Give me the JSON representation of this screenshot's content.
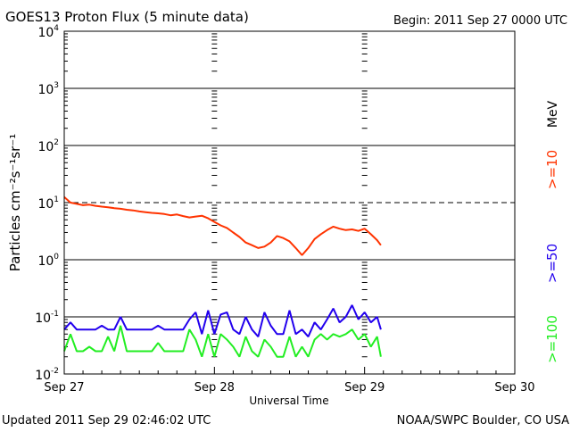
{
  "chart_data": {
    "type": "line",
    "title": "GOES13 Proton Flux (5 minute data)",
    "begin_label": "Begin: 2011 Sep 27 0000 UTC",
    "xlabel": "Universal Time",
    "ylabel": "Particles cm⁻²s⁻¹sr⁻¹",
    "energy_unit": "MeV",
    "yscale": "log",
    "ylim": [
      0.01,
      10000
    ],
    "y_ticks": [
      {
        "value": 10000,
        "base": "10",
        "exp": "4"
      },
      {
        "value": 1000,
        "base": "10",
        "exp": "3"
      },
      {
        "value": 100,
        "base": "10",
        "exp": "2"
      },
      {
        "value": 10,
        "base": "10",
        "exp": "1"
      },
      {
        "value": 1,
        "base": "10",
        "exp": "0"
      },
      {
        "value": 0.1,
        "base": "10",
        "exp": "-1"
      },
      {
        "value": 0.01,
        "base": "10",
        "exp": "-2"
      }
    ],
    "threshold_line": 10,
    "xlim_hours": [
      0,
      72
    ],
    "x_ticks": [
      {
        "hour": 0,
        "label": "Sep 27"
      },
      {
        "hour": 24,
        "label": "Sep 28"
      },
      {
        "hour": 48,
        "label": "Sep 29"
      },
      {
        "hour": 72,
        "label": "Sep 30"
      }
    ],
    "x_hours": [
      0,
      1,
      2,
      3,
      4,
      5,
      6,
      7,
      8,
      9,
      10,
      11,
      12,
      13,
      14,
      15,
      16,
      17,
      18,
      19,
      20,
      21,
      22,
      23,
      24,
      25,
      26,
      27,
      28,
      29,
      30,
      31,
      32,
      33,
      34,
      35,
      36,
      37,
      38,
      39,
      40,
      41,
      42,
      43,
      44,
      45,
      46,
      47,
      48,
      49,
      50,
      50.6
    ],
    "series": [
      {
        "name": ">=10",
        "color": "#ff3300",
        "values": [
          12.5,
          10,
          9.5,
          9,
          9.2,
          8.8,
          8.5,
          8.3,
          8,
          7.8,
          7.5,
          7.3,
          7,
          6.8,
          6.6,
          6.5,
          6.3,
          6,
          6.2,
          5.8,
          5.5,
          5.7,
          5.9,
          5.3,
          4.6,
          4,
          3.6,
          3,
          2.5,
          2,
          1.8,
          1.6,
          1.7,
          2,
          2.6,
          2.4,
          2.1,
          1.6,
          1.2,
          1.6,
          2.3,
          2.8,
          3.3,
          3.8,
          3.5,
          3.3,
          3.4,
          3.2,
          3.5,
          2.8,
          2.2,
          1.8
        ]
      },
      {
        "name": ">=50",
        "color": "#2200ee",
        "values": [
          0.06,
          0.08,
          0.06,
          0.06,
          0.06,
          0.06,
          0.07,
          0.06,
          0.06,
          0.1,
          0.06,
          0.06,
          0.06,
          0.06,
          0.06,
          0.07,
          0.06,
          0.06,
          0.06,
          0.06,
          0.09,
          0.12,
          0.05,
          0.13,
          0.05,
          0.11,
          0.12,
          0.06,
          0.05,
          0.1,
          0.06,
          0.045,
          0.12,
          0.07,
          0.05,
          0.05,
          0.13,
          0.05,
          0.06,
          0.045,
          0.08,
          0.06,
          0.09,
          0.14,
          0.08,
          0.1,
          0.16,
          0.09,
          0.12,
          0.08,
          0.1,
          0.06
        ]
      },
      {
        "name": ">=100",
        "color": "#22ee22",
        "values": [
          0.025,
          0.05,
          0.025,
          0.025,
          0.03,
          0.025,
          0.025,
          0.045,
          0.025,
          0.07,
          0.025,
          0.025,
          0.025,
          0.025,
          0.025,
          0.035,
          0.025,
          0.025,
          0.025,
          0.025,
          0.06,
          0.04,
          0.02,
          0.05,
          0.02,
          0.05,
          0.04,
          0.03,
          0.02,
          0.045,
          0.025,
          0.02,
          0.04,
          0.03,
          0.02,
          0.02,
          0.045,
          0.02,
          0.03,
          0.02,
          0.04,
          0.05,
          0.04,
          0.05,
          0.045,
          0.05,
          0.06,
          0.04,
          0.05,
          0.03,
          0.045,
          0.02
        ]
      }
    ]
  },
  "footer": {
    "updated": "Updated 2011 Sep 29 02:46:02 UTC",
    "source": "NOAA/SWPC Boulder, CO USA"
  }
}
